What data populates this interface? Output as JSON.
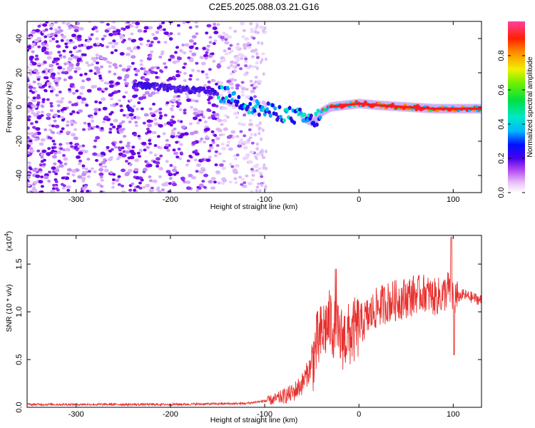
{
  "title": "C2E5.2025.088.03.21.G16",
  "chart_data": [
    {
      "type": "heatmap",
      "xlabel": "Height of straight line (km)",
      "ylabel": "Frequency (Hz)",
      "xlim": [
        -352,
        130
      ],
      "ylim": [
        -50,
        50
      ],
      "xticks": [
        -300,
        -200,
        -100,
        0,
        100
      ],
      "yticks": [
        -40,
        -20,
        0,
        20,
        40
      ],
      "xtick_labels": [
        "-300",
        "-200",
        "-100",
        "0",
        "100"
      ],
      "ytick_labels": [
        "-40",
        "-20",
        "0",
        "20",
        "40"
      ],
      "ridge": [
        {
          "x": -240,
          "f": 13
        },
        {
          "x": -200,
          "f": 11
        },
        {
          "x": -160,
          "f": 9
        },
        {
          "x": -140,
          "f": 7
        },
        {
          "x": -120,
          "f": 2
        },
        {
          "x": -100,
          "f": -2
        },
        {
          "x": -80,
          "f": -4
        },
        {
          "x": -60,
          "f": -6
        },
        {
          "x": -48,
          "f": -9
        },
        {
          "x": -40,
          "f": -3
        },
        {
          "x": -30,
          "f": 0
        },
        {
          "x": -15,
          "f": 1
        },
        {
          "x": 0,
          "f": 2
        },
        {
          "x": 20,
          "f": 1
        },
        {
          "x": 50,
          "f": 0
        },
        {
          "x": 80,
          "f": -1
        },
        {
          "x": 100,
          "f": -1
        },
        {
          "x": 130,
          "f": -1
        }
      ],
      "colorbar": {
        "label": "Normalized spectral amplitude",
        "range": [
          0,
          1
        ],
        "ticks": [
          0.0,
          0.2,
          0.4,
          0.6,
          0.8
        ],
        "tick_labels": [
          "0.0",
          "0.2",
          "0.4",
          "0.6",
          "0.8"
        ]
      }
    },
    {
      "type": "line",
      "xlabel": "Height of straight line (km)",
      "ylabel": "SNR (10 * v/v)",
      "ylabel_scale": "(x10",
      "ylabel_scale_exp": "4",
      "xlim": [
        -352,
        130
      ],
      "ylim": [
        0,
        1.8
      ],
      "xticks": [
        -300,
        -200,
        -100,
        0,
        100
      ],
      "yticks": [
        0.0,
        0.5,
        1.0,
        1.5
      ],
      "xtick_labels": [
        "-300",
        "-200",
        "-100",
        "0",
        "100"
      ],
      "ytick_labels": [
        "0.0",
        "0.5",
        "1.0",
        "1.5"
      ],
      "color": "#e8302e",
      "series": [
        {
          "name": "SNR",
          "x": [
            -352,
            -300,
            -200,
            -120,
            -90,
            -70,
            -60,
            -50,
            -45,
            -40,
            -35,
            -30,
            -25,
            -20,
            -10,
            0,
            10,
            20,
            30,
            40,
            50,
            60,
            70,
            80,
            90,
            95,
            100,
            105,
            110,
            120,
            130
          ],
          "y": [
            0.03,
            0.03,
            0.03,
            0.04,
            0.08,
            0.15,
            0.25,
            0.45,
            0.65,
            0.75,
            0.85,
            0.9,
            0.78,
            0.72,
            0.75,
            0.85,
            0.95,
            1.05,
            1.1,
            1.12,
            1.15,
            1.18,
            1.2,
            1.15,
            1.18,
            1.25,
            1.15,
            1.15,
            1.18,
            1.15,
            1.12
          ]
        }
      ]
    }
  ]
}
